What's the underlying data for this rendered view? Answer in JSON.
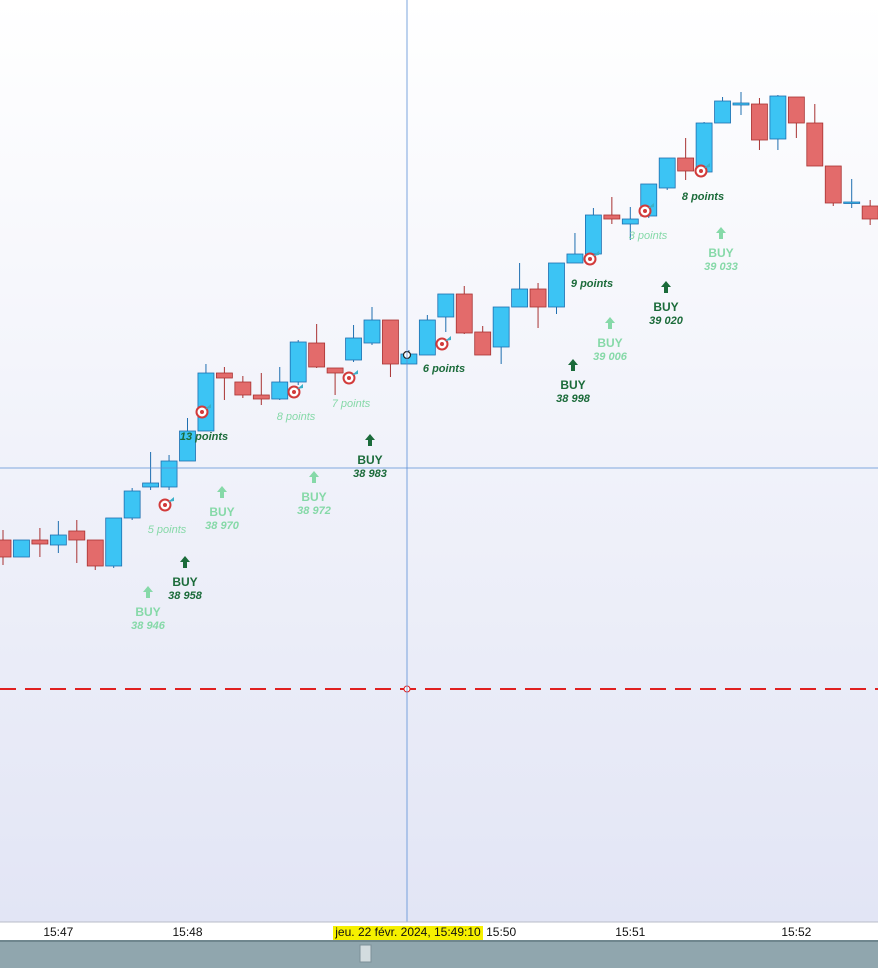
{
  "chart_data": {
    "type": "candlestick",
    "categories": [
      null,
      null,
      null,
      "15:47",
      null,
      null,
      null,
      null,
      null,
      null,
      "15:48",
      null,
      null,
      null,
      null,
      null,
      null,
      null,
      null,
      null,
      null,
      null,
      null,
      null,
      null,
      null,
      null,
      "15:50",
      null,
      null,
      null,
      null,
      null,
      null,
      "15:51",
      null,
      null,
      null,
      null,
      null,
      null,
      null,
      null,
      "15:52",
      null,
      null,
      null,
      null
    ],
    "open": [
      38930.75,
      38926.5,
      38930.75,
      38929.5,
      38933,
      38930.75,
      38924.25,
      38936.25,
      38944,
      38944,
      38950.5,
      38958,
      38972.5,
      38970.25,
      38967,
      38966,
      38970.25,
      38980,
      38973.75,
      38975.75,
      38980,
      38985.75,
      38974.75,
      38977,
      38986.5,
      38992.25,
      38982.75,
      38979,
      38989,
      38993.5,
      38989,
      39000,
      39002.25,
      39012,
      39009.75,
      39011.75,
      39018.75,
      39026.25,
      39022.75,
      39035,
      39039.5,
      39039.75,
      39031,
      39041.5,
      39035,
      39024.25,
      39015,
      39014.25
    ],
    "high": [
      38933.25,
      38930.75,
      38933.75,
      38935.5,
      38935.75,
      38930.75,
      38936.25,
      38943.75,
      38952.75,
      38952,
      38961.25,
      38974.75,
      38974,
      38971.75,
      38972.5,
      38974,
      38980.75,
      38984.75,
      38973.75,
      38984.5,
      38989,
      38985.75,
      38978.25,
      38987,
      38992.25,
      38994.25,
      38984.25,
      38989,
      39000,
      38995,
      39000,
      39007.5,
      39013.75,
      39016.5,
      39014,
      39019.75,
      39026.25,
      39031.25,
      39035.25,
      39041.5,
      39042.75,
      39041.25,
      39042,
      39041.5,
      39039.75,
      39024.25,
      39021,
      39015.75
    ],
    "low": [
      38924.5,
      38926.5,
      38926.5,
      38927.5,
      38925,
      38923.25,
      38923.75,
      38935.75,
      38943.25,
      38943.25,
      38950.5,
      38958,
      38965.75,
      38966.25,
      38964.5,
      38965.75,
      38969.5,
      38973.75,
      38967,
      38975.25,
      38979.5,
      38971.5,
      38974.75,
      38977,
      38982.75,
      38982.25,
      38977,
      38974.75,
      38989,
      38983.75,
      38987.25,
      39000,
      39000.25,
      39009.75,
      39005.75,
      39011.25,
      39018.25,
      39020.75,
      39022,
      39035,
      39037,
      39028.25,
      39028.25,
      39031.25,
      39024.25,
      39014.25,
      39013.75,
      39009.5
    ],
    "close": [
      38926.5,
      38930.75,
      38929.75,
      38932,
      38930.75,
      38924.25,
      38936.25,
      38943,
      38945,
      38950.5,
      38958,
      38972.5,
      38971.25,
      38967,
      38966,
      38970.25,
      38980.25,
      38974,
      38972.5,
      38981.25,
      38985.75,
      38974.75,
      38977.25,
      38985.75,
      38992.25,
      38982.5,
      38977,
      38989,
      38993.5,
      38989,
      39000,
      39002.25,
      39012,
      39011,
      39011,
      39019.75,
      39026.25,
      39023,
      39035,
      39040.5,
      39040,
      39030.75,
      39041.75,
      39035,
      39024.25,
      39015,
      39015.25,
      39011
    ],
    "up_color": "#3cc4f4",
    "down_color": "#e36b6b",
    "ylim": [
      38835.25,
      39065.75
    ],
    "hline": {
      "value": 38893.5,
      "color": "#e02020"
    },
    "crosshair_label": "jeu. 22 févr. 2024, 15:49:10",
    "signals": [
      {
        "text": "BUY",
        "price": "38 946",
        "color": "#86d9a8"
      },
      {
        "text": "BUY",
        "price": "38 958",
        "color": "#1b6b3a"
      },
      {
        "text": "BUY",
        "price": "38 970",
        "color": "#86d9a8"
      },
      {
        "text": "BUY",
        "price": "38 972",
        "color": "#86d9a8"
      },
      {
        "text": "BUY",
        "price": "38 983",
        "color": "#1b6b3a"
      },
      {
        "text": "BUY",
        "price": "38 998",
        "color": "#1b6b3a"
      },
      {
        "text": "BUY",
        "price": "39 006",
        "color": "#86d9a8"
      },
      {
        "text": "BUY",
        "price": "39 020",
        "color": "#1b6b3a"
      },
      {
        "text": "BUY",
        "price": "39 033",
        "color": "#86d9a8"
      }
    ],
    "points": [
      {
        "text": "5  points",
        "color": "#86d9a8"
      },
      {
        "text": "13  points",
        "color": "#1b6b3a"
      },
      {
        "text": "8  points",
        "color": "#86d9a8"
      },
      {
        "text": "7  points",
        "color": "#86d9a8"
      },
      {
        "text": "6  points",
        "color": "#1b6b3a"
      },
      {
        "text": "9  points",
        "color": "#1b6b3a"
      },
      {
        "text": "3  points",
        "color": "#86d9a8"
      },
      {
        "text": "8  points",
        "color": "#1b6b3a"
      }
    ]
  }
}
